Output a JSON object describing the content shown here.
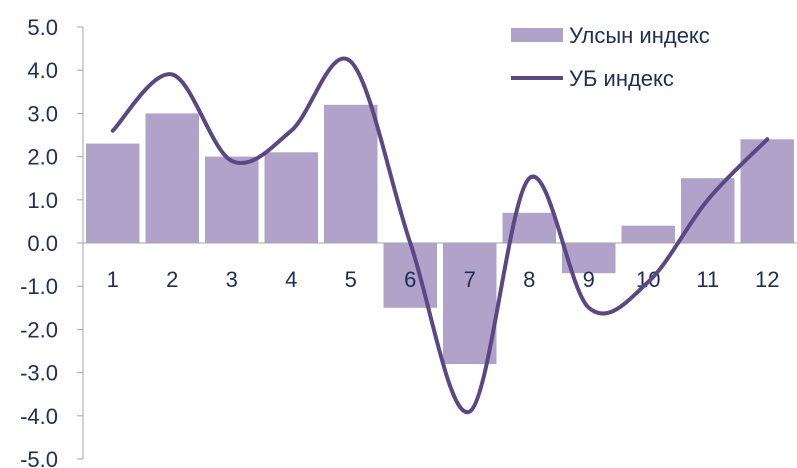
{
  "chart_data": {
    "type": "bar",
    "categories": [
      "1",
      "2",
      "3",
      "4",
      "5",
      "6",
      "7",
      "8",
      "9",
      "10",
      "11",
      "12"
    ],
    "series": [
      {
        "name": "Улсын индекс",
        "kind": "bar",
        "color": "#b0a2c8",
        "values": [
          2.3,
          3.0,
          2.0,
          2.1,
          3.2,
          -1.5,
          -2.8,
          0.7,
          -0.7,
          0.4,
          1.5,
          2.4
        ]
      },
      {
        "name": "УБ индекс",
        "kind": "line",
        "smooth": true,
        "color": "#5c4785",
        "values": [
          2.6,
          3.9,
          1.9,
          2.6,
          4.2,
          0.0,
          -3.9,
          1.5,
          -1.5,
          -0.9,
          1.0,
          2.4
        ]
      }
    ],
    "y_ticks": [
      "5.0",
      "4.0",
      "3.0",
      "2.0",
      "1.0",
      "0.0",
      "-1.0",
      "-2.0",
      "-3.0",
      "-4.0",
      "-5.0"
    ],
    "ylim": [
      -5,
      5
    ],
    "grid": false,
    "legend": "top-right"
  }
}
